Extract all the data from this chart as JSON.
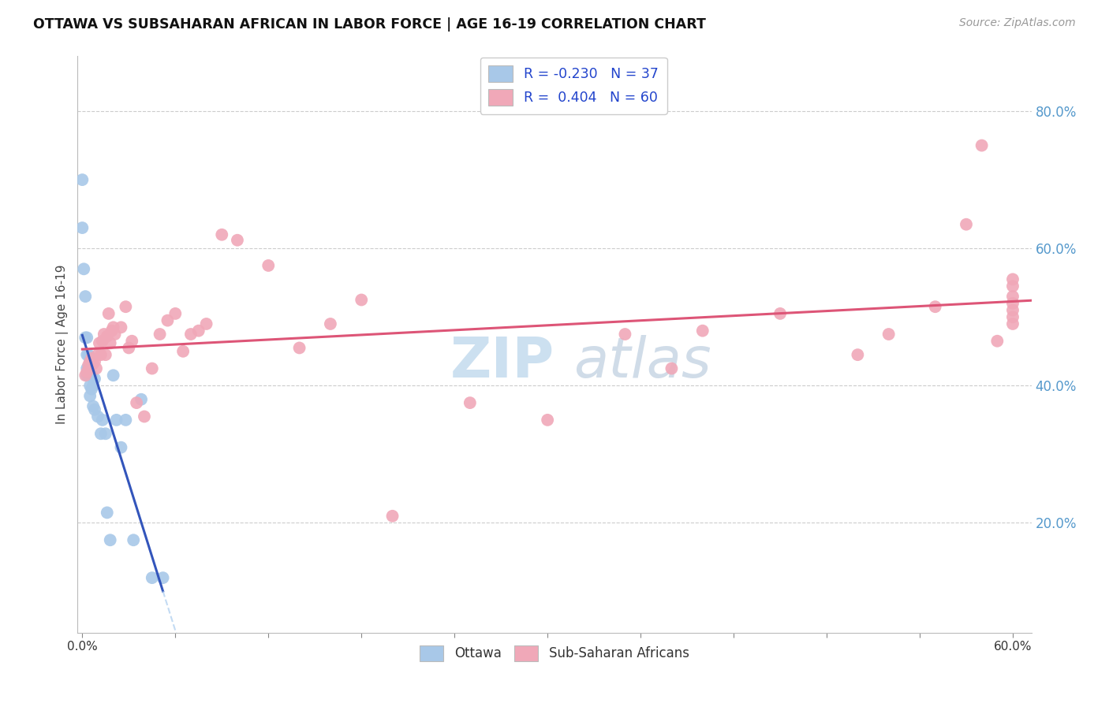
{
  "title": "OTTAWA VS SUBSAHARAN AFRICAN IN LABOR FORCE | AGE 16-19 CORRELATION CHART",
  "source": "Source: ZipAtlas.com",
  "ylabel": "In Labor Force | Age 16-19",
  "ytick_values": [
    0.2,
    0.4,
    0.6,
    0.8
  ],
  "xlim": [
    -0.003,
    0.612
  ],
  "ylim": [
    0.04,
    0.88
  ],
  "blue_color": "#a8c8e8",
  "pink_color": "#f0a8b8",
  "blue_line_color": "#3355bb",
  "pink_line_color": "#dd5577",
  "ottawa_x": [
    0.0,
    0.0,
    0.001,
    0.002,
    0.002,
    0.003,
    0.003,
    0.003,
    0.003,
    0.004,
    0.004,
    0.004,
    0.005,
    0.005,
    0.005,
    0.005,
    0.006,
    0.006,
    0.006,
    0.007,
    0.007,
    0.008,
    0.008,
    0.01,
    0.012,
    0.013,
    0.015,
    0.016,
    0.018,
    0.02,
    0.022,
    0.025,
    0.028,
    0.033,
    0.038,
    0.045,
    0.052
  ],
  "ottawa_y": [
    0.7,
    0.63,
    0.57,
    0.53,
    0.47,
    0.47,
    0.445,
    0.425,
    0.415,
    0.445,
    0.425,
    0.415,
    0.435,
    0.415,
    0.4,
    0.385,
    0.43,
    0.415,
    0.395,
    0.4,
    0.37,
    0.41,
    0.365,
    0.355,
    0.33,
    0.35,
    0.33,
    0.215,
    0.175,
    0.415,
    0.35,
    0.31,
    0.35,
    0.175,
    0.38,
    0.12,
    0.12
  ],
  "subsaharan_x": [
    0.002,
    0.003,
    0.004,
    0.005,
    0.006,
    0.007,
    0.008,
    0.009,
    0.01,
    0.011,
    0.012,
    0.013,
    0.014,
    0.015,
    0.016,
    0.017,
    0.018,
    0.019,
    0.02,
    0.021,
    0.025,
    0.028,
    0.03,
    0.032,
    0.035,
    0.04,
    0.045,
    0.05,
    0.055,
    0.06,
    0.065,
    0.07,
    0.075,
    0.08,
    0.09,
    0.1,
    0.12,
    0.14,
    0.16,
    0.18,
    0.2,
    0.25,
    0.3,
    0.35,
    0.38,
    0.4,
    0.45,
    0.5,
    0.52,
    0.55,
    0.57,
    0.58,
    0.59,
    0.6,
    0.6,
    0.6,
    0.6,
    0.6,
    0.6,
    0.6
  ],
  "subsaharan_y": [
    0.415,
    0.42,
    0.43,
    0.435,
    0.44,
    0.432,
    0.435,
    0.425,
    0.445,
    0.462,
    0.445,
    0.465,
    0.475,
    0.445,
    0.472,
    0.505,
    0.462,
    0.48,
    0.485,
    0.475,
    0.485,
    0.515,
    0.455,
    0.465,
    0.375,
    0.355,
    0.425,
    0.475,
    0.495,
    0.505,
    0.45,
    0.475,
    0.48,
    0.49,
    0.62,
    0.612,
    0.575,
    0.455,
    0.49,
    0.525,
    0.21,
    0.375,
    0.35,
    0.475,
    0.425,
    0.48,
    0.505,
    0.445,
    0.475,
    0.515,
    0.635,
    0.75,
    0.465,
    0.49,
    0.5,
    0.51,
    0.52,
    0.53,
    0.545,
    0.555
  ],
  "grid_color": "#cccccc",
  "tick_label_color": "#5599cc",
  "xlabel_color": "#333333",
  "legend_label_color": "#2244cc",
  "watermark_zip_color": "#cce0f0",
  "watermark_atlas_color": "#d0dce8"
}
